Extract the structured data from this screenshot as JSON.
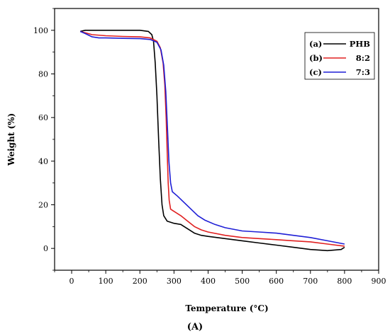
{
  "chart_data": {
    "type": "line",
    "xlabel": "Temperature (°C)",
    "ylabel": "Weight (%)",
    "panel_label": "(A)",
    "xlim": [
      -50,
      900
    ],
    "ylim": [
      -10,
      110
    ],
    "x_ticks": [
      0,
      100,
      200,
      300,
      400,
      500,
      600,
      700,
      800,
      900
    ],
    "y_ticks": [
      0,
      20,
      40,
      60,
      80,
      100
    ],
    "grid": false,
    "legend_position": "top-right",
    "series": [
      {
        "name": "PHB",
        "legend_prefix": "(a)",
        "color": "#000000",
        "points": [
          [
            25,
            99.5
          ],
          [
            40,
            100
          ],
          [
            100,
            100
          ],
          [
            150,
            100
          ],
          [
            200,
            100
          ],
          [
            225,
            99.5
          ],
          [
            235,
            98
          ],
          [
            240,
            95
          ],
          [
            245,
            85
          ],
          [
            250,
            70
          ],
          [
            255,
            50
          ],
          [
            260,
            32
          ],
          [
            265,
            20
          ],
          [
            270,
            15
          ],
          [
            280,
            12.5
          ],
          [
            300,
            11.5
          ],
          [
            320,
            11
          ],
          [
            340,
            9
          ],
          [
            360,
            7
          ],
          [
            380,
            6
          ],
          [
            400,
            5.5
          ],
          [
            450,
            4.5
          ],
          [
            500,
            3.5
          ],
          [
            550,
            2.5
          ],
          [
            600,
            1.5
          ],
          [
            650,
            0.5
          ],
          [
            700,
            -0.5
          ],
          [
            750,
            -1
          ],
          [
            790,
            -0.5
          ],
          [
            800,
            0.5
          ]
        ]
      },
      {
        "name": "8:2",
        "legend_prefix": "(b)",
        "color": "#e02020",
        "points": [
          [
            25,
            99.5
          ],
          [
            60,
            98
          ],
          [
            100,
            97.5
          ],
          [
            150,
            97.2
          ],
          [
            200,
            97
          ],
          [
            230,
            96.5
          ],
          [
            250,
            95
          ],
          [
            260,
            92
          ],
          [
            268,
            85
          ],
          [
            273,
            75
          ],
          [
            277,
            60
          ],
          [
            280,
            45
          ],
          [
            283,
            30
          ],
          [
            286,
            22
          ],
          [
            290,
            18
          ],
          [
            300,
            17
          ],
          [
            320,
            15
          ],
          [
            340,
            12.5
          ],
          [
            360,
            10
          ],
          [
            380,
            8.5
          ],
          [
            400,
            7.5
          ],
          [
            450,
            6
          ],
          [
            500,
            5
          ],
          [
            550,
            4.5
          ],
          [
            600,
            4
          ],
          [
            650,
            3.5
          ],
          [
            700,
            3
          ],
          [
            750,
            2
          ],
          [
            800,
            1
          ]
        ]
      },
      {
        "name": "7:3",
        "legend_prefix": "(c)",
        "color": "#1f1fd6",
        "points": [
          [
            25,
            99.5
          ],
          [
            40,
            98.5
          ],
          [
            60,
            97
          ],
          [
            80,
            96.5
          ],
          [
            100,
            96.5
          ],
          [
            150,
            96.3
          ],
          [
            200,
            96.2
          ],
          [
            230,
            95.8
          ],
          [
            250,
            94.5
          ],
          [
            262,
            91
          ],
          [
            270,
            84
          ],
          [
            276,
            72
          ],
          [
            281,
            55
          ],
          [
            285,
            40
          ],
          [
            290,
            30
          ],
          [
            295,
            26
          ],
          [
            310,
            24
          ],
          [
            330,
            21
          ],
          [
            350,
            18
          ],
          [
            370,
            15
          ],
          [
            390,
            13
          ],
          [
            420,
            11
          ],
          [
            450,
            9.5
          ],
          [
            500,
            8
          ],
          [
            550,
            7.5
          ],
          [
            600,
            7
          ],
          [
            650,
            6
          ],
          [
            700,
            5
          ],
          [
            750,
            3.5
          ],
          [
            800,
            2
          ]
        ]
      }
    ]
  }
}
